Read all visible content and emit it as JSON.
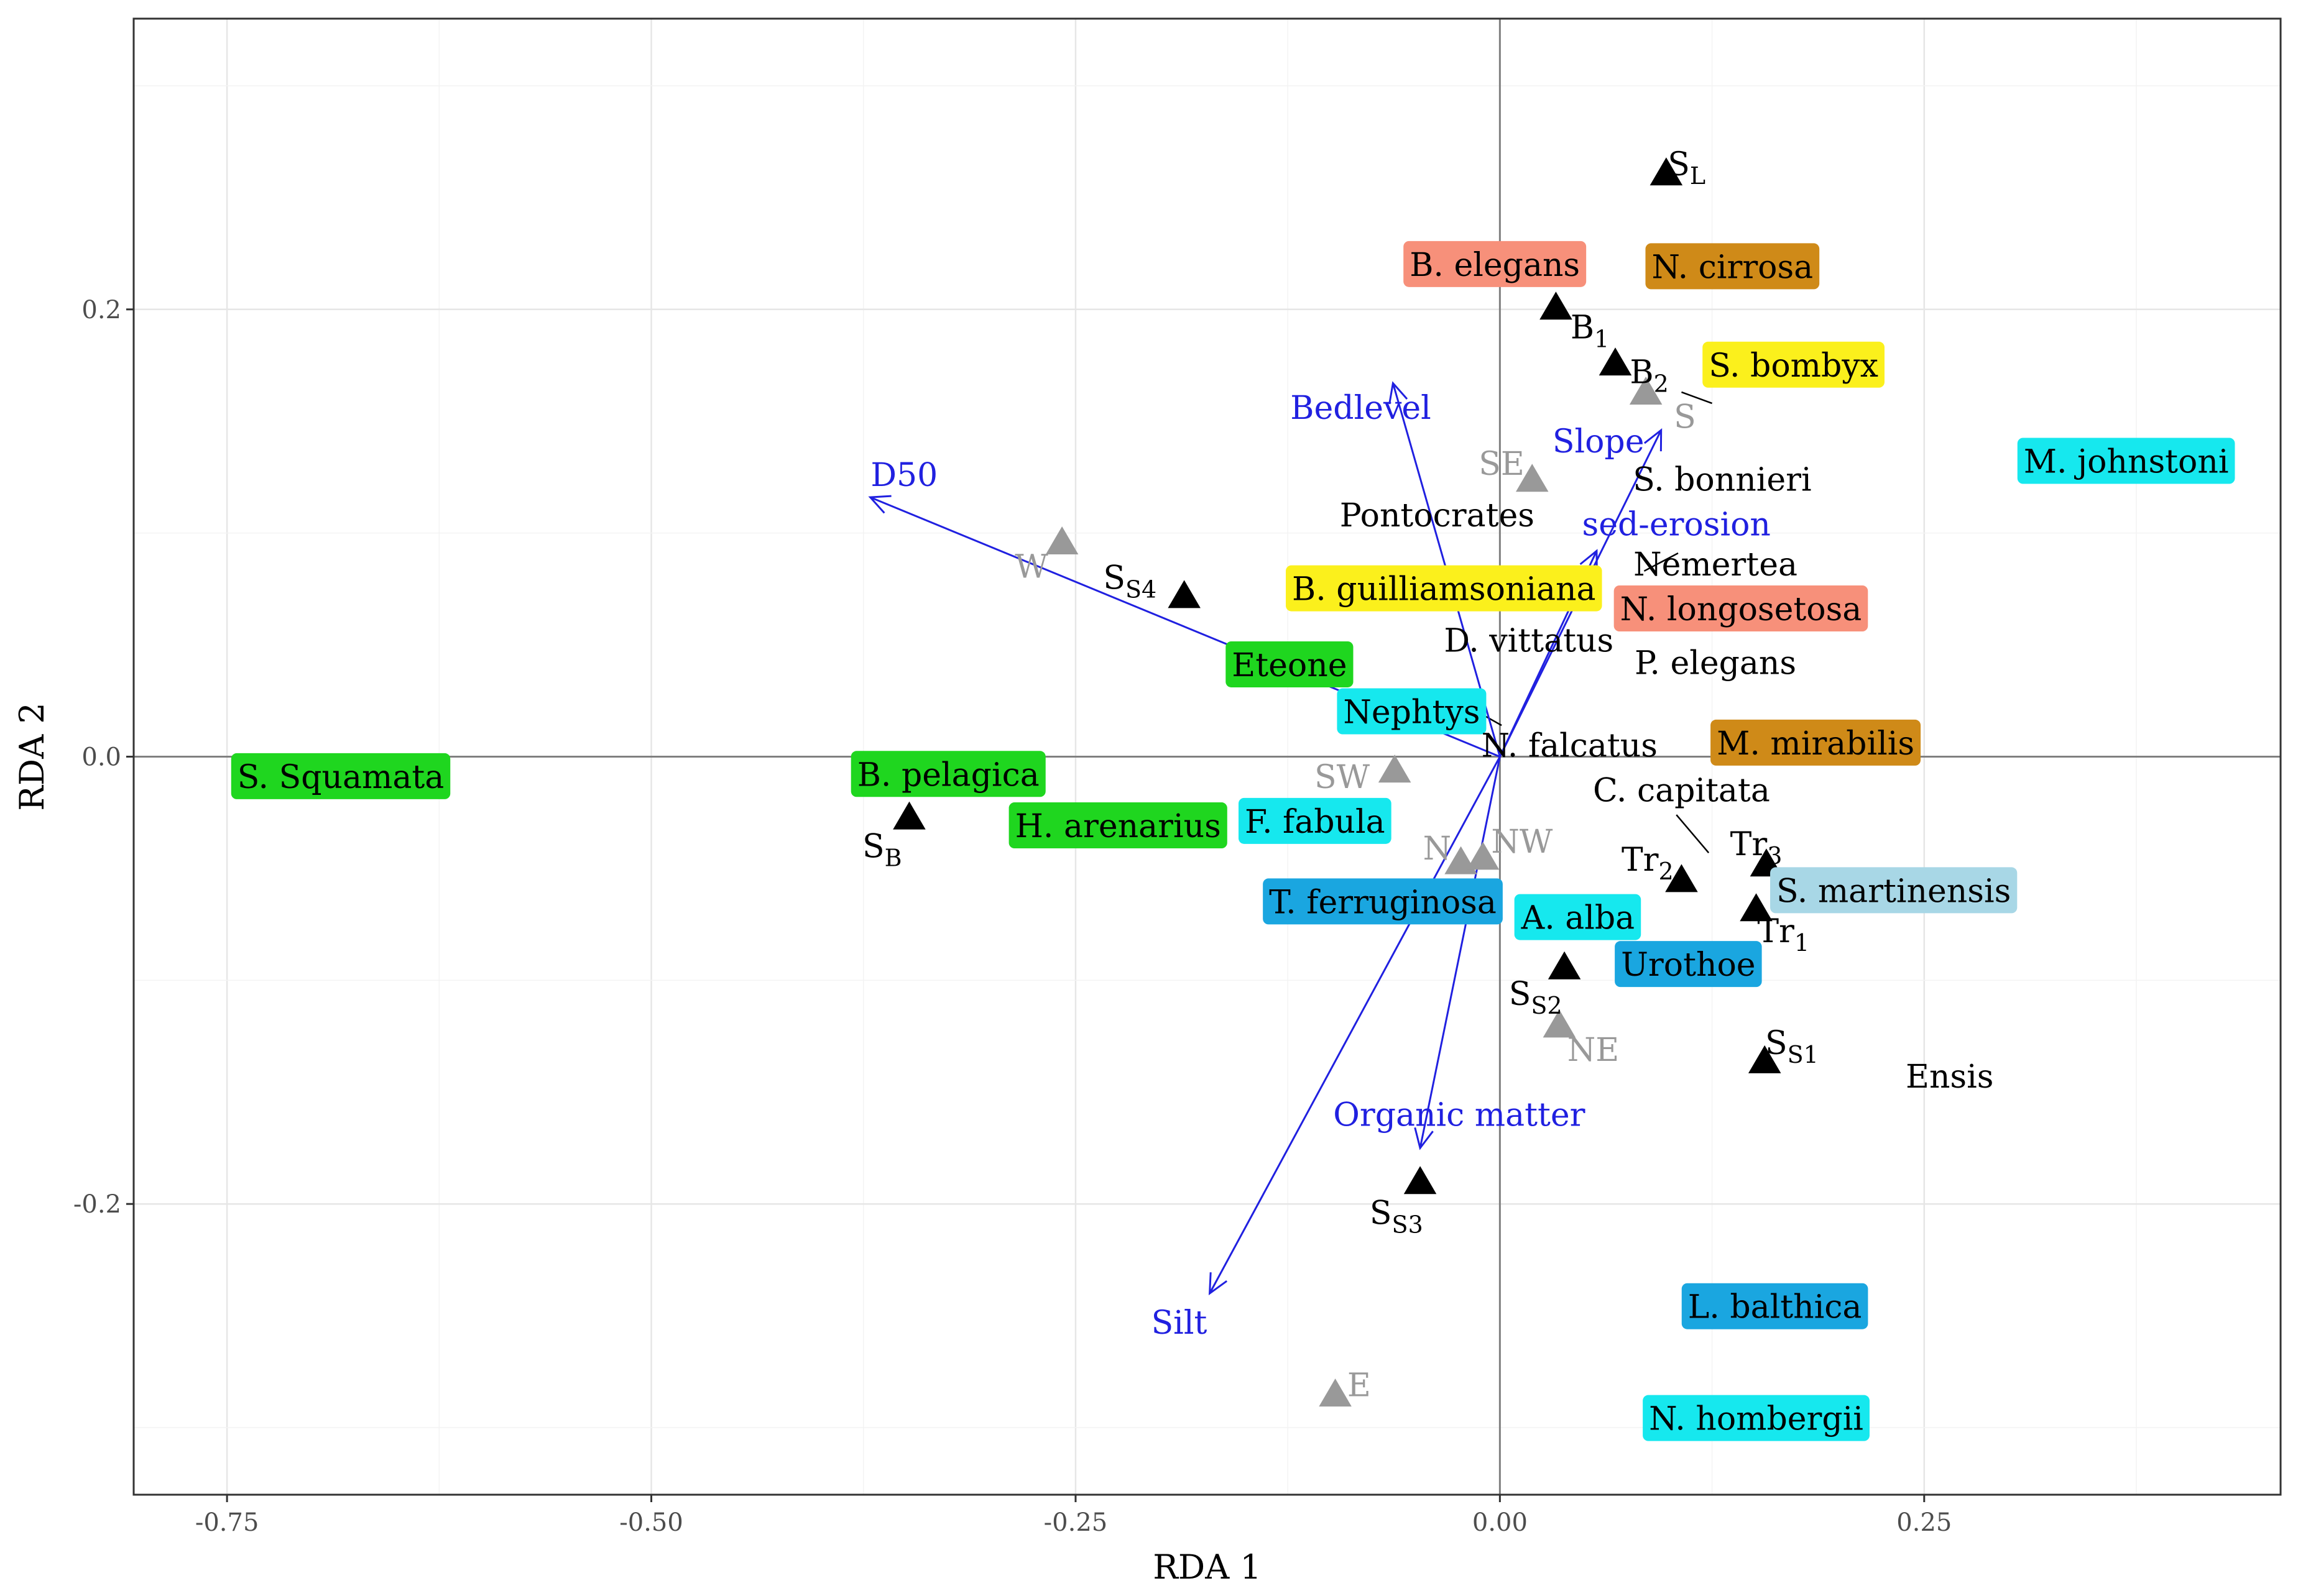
{
  "chart_data": {
    "type": "scatter",
    "subtype": "RDA triplot",
    "title": "",
    "xlabel": "RDA 1",
    "ylabel": "RDA 2",
    "xlim": [
      -0.805,
      0.46
    ],
    "ylim": [
      -0.33,
      0.33
    ],
    "x_ticks": [
      -0.75,
      -0.5,
      -0.25,
      0.0,
      0.25
    ],
    "x_tick_labels": [
      "-0.75",
      "-0.50",
      "-0.25",
      "0.00",
      "0.25"
    ],
    "y_ticks": [
      -0.2,
      0.0,
      0.2
    ],
    "y_tick_labels": [
      "-0.2",
      "0.0",
      "0.2"
    ],
    "grid": true,
    "colors": {
      "green": "#1fd61f",
      "cyan": "#16e8ee",
      "blue": "#1aa6e0",
      "lightblue": "#a8d7e6",
      "salmon": "#f7907a",
      "orange": "#cf8a18",
      "yellow": "#fbf01c",
      "arrow": "#2020e0",
      "station": "#000000",
      "direction": "#999999",
      "species_text": "#000000"
    },
    "env_arrows": [
      {
        "label": "D50",
        "x": -0.371,
        "y": 0.116,
        "lx": -0.351,
        "ly": 0.126
      },
      {
        "label": "Bedlevel",
        "x": -0.063,
        "y": 0.167,
        "lx": -0.082,
        "ly": 0.156
      },
      {
        "label": "Slope",
        "x": 0.095,
        "y": 0.146,
        "lx": 0.058,
        "ly": 0.141
      },
      {
        "label": "sed-erosion",
        "x": 0.057,
        "y": 0.092,
        "lx": 0.104,
        "ly": 0.104
      },
      {
        "label": "Organic matter",
        "x": -0.047,
        "y": -0.175,
        "lx": -0.024,
        "ly": -0.16
      },
      {
        "label": "Silt",
        "x": -0.171,
        "y": -0.24,
        "lx": -0.189,
        "ly": -0.253
      }
    ],
    "stations": [
      {
        "main": "S",
        "sub": "L",
        "x": 0.098,
        "y": 0.261,
        "lx": 0.11,
        "ly": 0.265
      },
      {
        "main": "B",
        "sub": "1",
        "x": 0.033,
        "y": 0.201,
        "lx": 0.053,
        "ly": 0.192
      },
      {
        "main": "B",
        "sub": "2",
        "x": 0.068,
        "y": 0.176,
        "lx": 0.088,
        "ly": 0.172
      },
      {
        "main": "S",
        "sub": "S4",
        "x": -0.186,
        "y": 0.072,
        "lx": -0.218,
        "ly": 0.08
      },
      {
        "main": "S",
        "sub": "B",
        "x": -0.348,
        "y": -0.027,
        "lx": -0.364,
        "ly": -0.04
      },
      {
        "main": "Tr",
        "sub": "2",
        "x": 0.107,
        "y": -0.055,
        "lx": 0.087,
        "ly": -0.046
      },
      {
        "main": "Tr",
        "sub": "3",
        "x": 0.157,
        "y": -0.048,
        "lx": 0.151,
        "ly": -0.039
      },
      {
        "main": "Tr",
        "sub": "1",
        "x": 0.151,
        "y": -0.068,
        "lx": 0.167,
        "ly": -0.078
      },
      {
        "main": "S",
        "sub": "S2",
        "x": 0.038,
        "y": -0.094,
        "lx": 0.021,
        "ly": -0.106
      },
      {
        "main": "S",
        "sub": "S1",
        "x": 0.156,
        "y": -0.136,
        "lx": 0.172,
        "ly": -0.128
      },
      {
        "main": "S",
        "sub": "S3",
        "x": -0.047,
        "y": -0.19,
        "lx": -0.061,
        "ly": -0.204
      }
    ],
    "directions": [
      {
        "label": "S",
        "x": 0.086,
        "y": 0.163,
        "lx": 0.109,
        "ly": 0.152
      },
      {
        "label": "SE",
        "x": 0.019,
        "y": 0.124,
        "lx": 0.001,
        "ly": 0.131
      },
      {
        "label": "W",
        "x": -0.258,
        "y": 0.096,
        "lx": -0.276,
        "ly": 0.085
      },
      {
        "label": "SW",
        "x": -0.062,
        "y": -0.006,
        "lx": -0.093,
        "ly": -0.009
      },
      {
        "label": "N",
        "x": -0.023,
        "y": -0.047,
        "lx": -0.037,
        "ly": -0.041
      },
      {
        "label": "NW",
        "x": -0.01,
        "y": -0.045,
        "lx": 0.013,
        "ly": -0.038
      },
      {
        "label": "NE",
        "x": 0.035,
        "y": -0.12,
        "lx": 0.055,
        "ly": -0.131
      },
      {
        "label": "E",
        "x": -0.097,
        "y": -0.285,
        "lx": -0.083,
        "ly": -0.281
      }
    ],
    "species": [
      {
        "label": "B. elegans",
        "x": -0.003,
        "y": 0.22,
        "box": "salmon"
      },
      {
        "label": "N. cirrosa",
        "x": 0.137,
        "y": 0.219,
        "box": "orange"
      },
      {
        "label": "S. bombyx",
        "x": 0.173,
        "y": 0.175,
        "box": "yellow"
      },
      {
        "label": "M. johnstoni",
        "x": 0.369,
        "y": 0.132,
        "box": "cyan"
      },
      {
        "label": "S. bonnieri",
        "x": 0.131,
        "y": 0.124,
        "box": null
      },
      {
        "label": "Pontocrates",
        "x": -0.037,
        "y": 0.108,
        "box": null
      },
      {
        "label": "Nemertea",
        "x": 0.127,
        "y": 0.086,
        "box": null
      },
      {
        "label": "B. guilliamsoniana",
        "x": -0.033,
        "y": 0.075,
        "box": "yellow"
      },
      {
        "label": "N. longosetosa",
        "x": 0.142,
        "y": 0.066,
        "box": "salmon"
      },
      {
        "label": "D. vittatus",
        "x": 0.017,
        "y": 0.052,
        "box": null
      },
      {
        "label": "P. elegans",
        "x": 0.127,
        "y": 0.042,
        "box": null
      },
      {
        "label": "Eteone",
        "x": -0.124,
        "y": 0.041,
        "box": "green"
      },
      {
        "label": "Nephtys",
        "x": -0.052,
        "y": 0.02,
        "box": "cyan"
      },
      {
        "label": "N. falcatus",
        "x": 0.041,
        "y": 0.005,
        "box": null
      },
      {
        "label": "M. mirabilis",
        "x": 0.186,
        "y": 0.006,
        "box": "orange"
      },
      {
        "label": "S. Squamata",
        "x": -0.683,
        "y": -0.009,
        "box": "green"
      },
      {
        "label": "B. pelagica",
        "x": -0.325,
        "y": -0.008,
        "box": "green"
      },
      {
        "label": "C. capitata",
        "x": 0.107,
        "y": -0.015,
        "box": null
      },
      {
        "label": "H. arenarius",
        "x": -0.225,
        "y": -0.031,
        "box": "green"
      },
      {
        "label": "F. fabula",
        "x": -0.109,
        "y": -0.029,
        "box": "cyan"
      },
      {
        "label": "T. ferruginosa",
        "x": -0.069,
        "y": -0.065,
        "box": "blue"
      },
      {
        "label": "S. martinensis",
        "x": 0.232,
        "y": -0.06,
        "box": "lightblue"
      },
      {
        "label": "A. alba",
        "x": 0.046,
        "y": -0.072,
        "box": "cyan"
      },
      {
        "label": "Urothoe",
        "x": 0.111,
        "y": -0.093,
        "box": "blue"
      },
      {
        "label": "Ensis",
        "x": 0.265,
        "y": -0.143,
        "box": null
      },
      {
        "label": "L. balthica",
        "x": 0.162,
        "y": -0.246,
        "box": "blue"
      },
      {
        "label": "N. hombergii",
        "x": 0.151,
        "y": -0.296,
        "box": "cyan"
      }
    ],
    "connectors": [
      {
        "x1": 0.125,
        "y1": 0.158,
        "x2": 0.107,
        "y2": 0.163
      },
      {
        "x1": 0.105,
        "y1": 0.091,
        "x2": 0.085,
        "y2": 0.083
      },
      {
        "x1": 0.092,
        "y1": 0.074,
        "x2": 0.109,
        "y2": 0.063
      },
      {
        "x1": -0.013,
        "y1": 0.02,
        "x2": 0.001,
        "y2": 0.014
      },
      {
        "x1": 0.104,
        "y1": -0.026,
        "x2": 0.123,
        "y2": -0.043
      }
    ]
  }
}
